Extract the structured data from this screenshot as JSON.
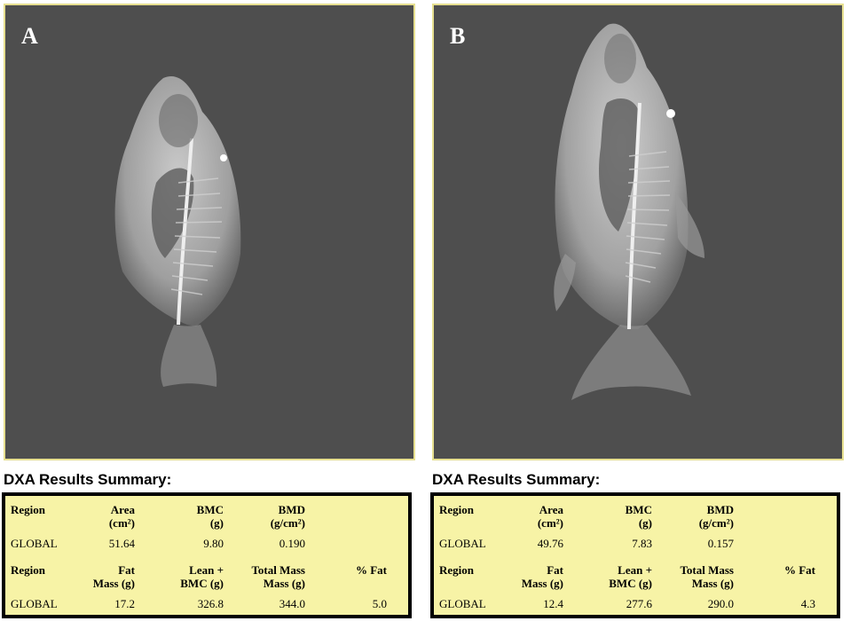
{
  "panels": [
    {
      "letter": "A",
      "summary_title": "DXA Results Summary:",
      "table1": {
        "headers": [
          "Region",
          "Area\n(cm²)",
          "BMC\n(g)",
          "BMD\n(g/cm²)"
        ],
        "row": [
          "GLOBAL",
          "51.64",
          "9.80",
          "0.190"
        ]
      },
      "table2": {
        "headers": [
          "Region",
          "Fat\nMass (g)",
          "Lean +\nBMC (g)",
          "Total Mass\nMass (g)",
          "% Fat"
        ],
        "row": [
          "GLOBAL",
          "17.2",
          "326.8",
          "344.0",
          "5.0"
        ]
      }
    },
    {
      "letter": "B",
      "summary_title": "DXA Results Summary:",
      "table1": {
        "headers": [
          "Region",
          "Area\n(cm²)",
          "BMC\n(g)",
          "BMD\n(g/cm²)"
        ],
        "row": [
          "GLOBAL",
          "49.76",
          "7.83",
          "0.157"
        ]
      },
      "table2": {
        "headers": [
          "Region",
          "Fat\nMass (g)",
          "Lean +\nBMC (g)",
          "Total Mass\nMass (g)",
          "% Fat"
        ],
        "row": [
          "GLOBAL",
          "12.4",
          "277.6",
          "290.0",
          "4.3"
        ]
      }
    }
  ],
  "colors": {
    "scan_background": "#4e4e4e",
    "scan_border": "#e6df8f",
    "table_background": "#f7f3a6",
    "table_border": "#000000",
    "table_shadow": "#bdbdbd"
  },
  "icons": [
    "fish-xray-image"
  ]
}
